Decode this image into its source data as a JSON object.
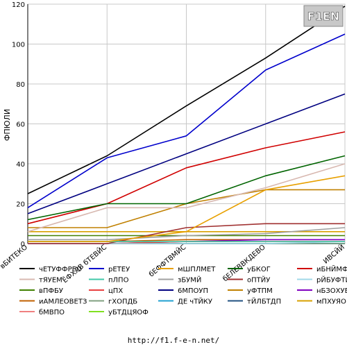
{
  "logo_text": "F1EN",
  "source_url": "http://f1.f-e-n.net/",
  "chart_data": {
    "type": "line",
    "ylabel": "ФПЮЛИ",
    "ylim": [
      0,
      120
    ],
    "y_ticks": [
      0,
      20,
      40,
      60,
      80,
      100,
      120
    ],
    "categories": [
      "вБИТЕКО",
      "ЁФХЛВ бТЕВЙС",
      "бЕФФТВМЙС",
      "бЕЛЕВВКДЕВО",
      "ИВСЙЙ"
    ],
    "legend_columns": 5,
    "series": [
      {
        "name": "чЕТУФФРЕО",
        "color": "#000000",
        "values": [
          25,
          44,
          69,
          93,
          119
        ]
      },
      {
        "name": "рЕТЕУ",
        "color": "#0000cc",
        "values": [
          18,
          43,
          54,
          87,
          105
        ]
      },
      {
        "name": "мШПЛМЕТ",
        "color": "#e8a000",
        "values": [
          1,
          1,
          6,
          27,
          34
        ]
      },
      {
        "name": "уБКОГ",
        "color": "#006400",
        "values": [
          12,
          20,
          20,
          34,
          44
        ]
      },
      {
        "name": "иБНЙМФЯО",
        "color": "#d00000",
        "values": [
          10,
          20,
          38,
          48,
          56
        ]
      },
      {
        "name": "тЯУЕМ",
        "color": "#d8b8b0",
        "values": [
          6,
          18,
          18,
          28,
          40
        ]
      },
      {
        "name": "пЛПО",
        "color": "#40c8a8",
        "values": [
          1,
          1,
          1,
          1,
          1
        ]
      },
      {
        "name": "зБУМЙ",
        "color": "#a0a0a0",
        "values": [
          2,
          2,
          4,
          5,
          8
        ]
      },
      {
        "name": "оПТЙУ",
        "color": "#a03030",
        "values": [
          0,
          0,
          8,
          10,
          10
        ]
      },
      {
        "name": "рЙБУФТЙ",
        "color": "#a0d8e8",
        "values": [
          0,
          0,
          0,
          0,
          1
        ]
      },
      {
        "name": "вПФБУ",
        "color": "#408000",
        "values": [
          4,
          4,
          4,
          4,
          4
        ]
      },
      {
        "name": "цПХ",
        "color": "#e84040",
        "values": [
          0,
          0,
          1,
          1,
          1
        ]
      },
      {
        "name": "6МПОУП",
        "color": "#000080",
        "values": [
          15,
          30,
          45,
          60,
          75
        ]
      },
      {
        "name": "уФТПМ",
        "color": "#c08000",
        "values": [
          8,
          8,
          20,
          27,
          27
        ]
      },
      {
        "name": "нБЗОХУЕО",
        "color": "#8000c0",
        "values": [
          0,
          0,
          1,
          2,
          2
        ]
      },
      {
        "name": "иАМЛЕОВЕТЗ",
        "color": "#c06000",
        "values": [
          1,
          1,
          2,
          2,
          2
        ]
      },
      {
        "name": "гХОПДБ",
        "color": "#80a080",
        "values": [
          0,
          0,
          0,
          0,
          0
        ]
      },
      {
        "name": "ДЕ чТЙКУ",
        "color": "#20a0d0",
        "values": [
          0,
          0,
          0,
          0,
          0
        ]
      },
      {
        "name": "тЙЛБТДП",
        "color": "#205080",
        "values": [
          0,
          0,
          0,
          0,
          0
        ]
      },
      {
        "name": "мПХУЯО",
        "color": "#d8a000",
        "values": [
          6,
          6,
          6,
          6,
          6
        ]
      },
      {
        "name": "бМВПО",
        "color": "#f08080",
        "values": [
          0,
          0,
          0,
          0,
          0
        ]
      },
      {
        "name": "уБТДЦЯОФ",
        "color": "#80e020",
        "values": [
          0,
          0,
          0,
          0,
          0
        ]
      }
    ]
  }
}
